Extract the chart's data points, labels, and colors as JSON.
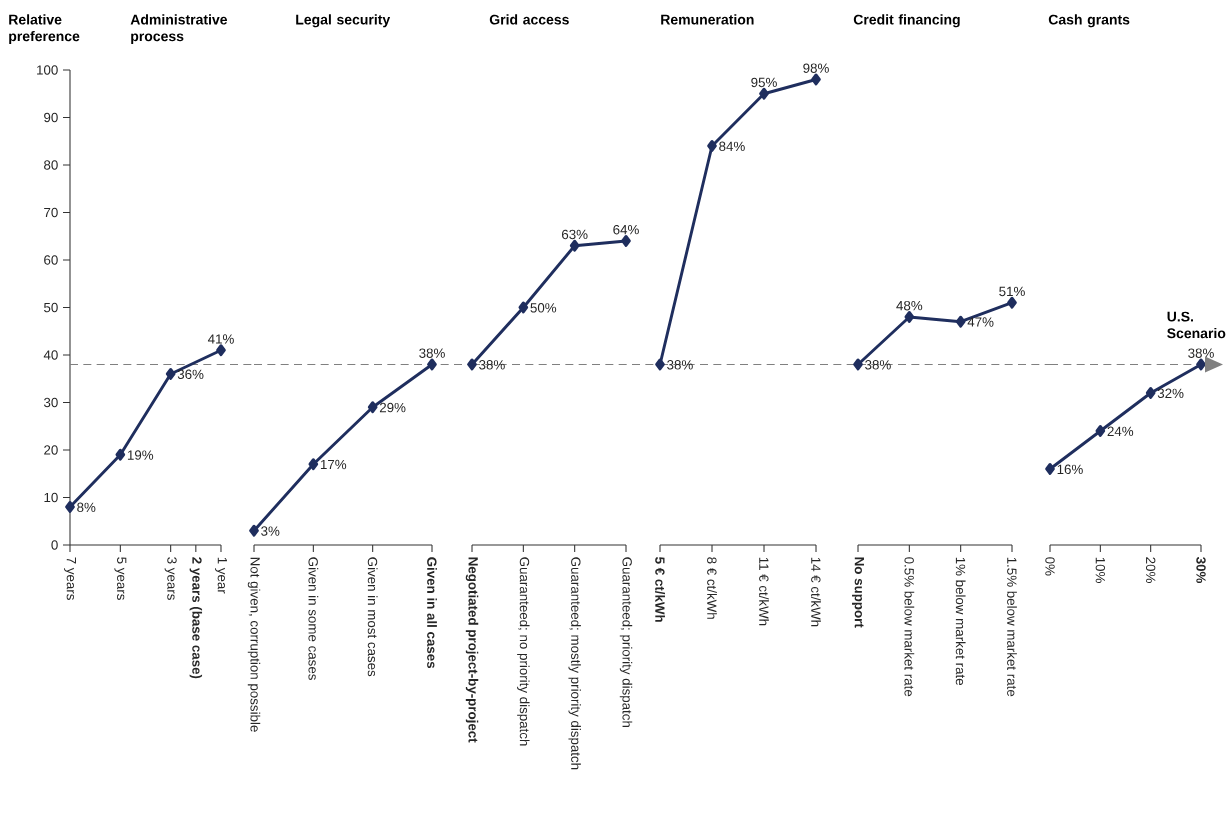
{
  "chart_data": [
    {
      "type": "line",
      "title": "Administrative process",
      "ylabel": "Relative preference",
      "x": [
        7,
        5,
        3,
        1
      ],
      "xlim": [
        7,
        1
      ],
      "xticks": [
        {
          "value": 7,
          "label": "7 years"
        },
        {
          "value": 5,
          "label": "5 years"
        },
        {
          "value": 3,
          "label": "3 years"
        },
        {
          "value": 2,
          "label": "**2 years (base case)**"
        },
        {
          "value": 1,
          "label": "1 year"
        }
      ],
      "values": [
        8,
        19,
        36,
        41
      ],
      "value_labels": [
        "8%",
        "19%",
        "36%",
        "41%"
      ],
      "color": "#1f2e5e",
      "marker": "diamond",
      "ylim": [
        0,
        100
      ],
      "yticks": [
        0,
        10,
        20,
        30,
        40,
        50,
        60,
        70,
        80,
        90,
        100
      ],
      "ref_lines": [
        {
          "axis": "y",
          "value": 38,
          "color": "#808080",
          "line_style": "dashed"
        }
      ]
    },
    {
      "type": "line",
      "title": "Legal security",
      "categories": [
        "Not given, corruption possible",
        "Given in some cases",
        "Given in most cases",
        "**Given in all cases**"
      ],
      "values": [
        3,
        17,
        29,
        38
      ],
      "value_labels": [
        "3%",
        "17%",
        "29%",
        "38%"
      ],
      "color": "#1f2e5e",
      "marker": "diamond",
      "ylim": [
        0,
        100
      ],
      "tick_labels": "x",
      "ref_lines": [
        {
          "axis": "y",
          "value": 38,
          "color": "#808080",
          "line_style": "dashed"
        }
      ]
    },
    {
      "type": "line",
      "title": "Grid access",
      "categories": [
        "**Negotiated project-by-project**",
        "Guaranteed; no priority dispatch",
        "Guaranteed; mostly priority dispatch",
        "Guaranteed; priority dispatch"
      ],
      "values": [
        38,
        50,
        63,
        64
      ],
      "value_labels": [
        "38%",
        "50%",
        "63%",
        "64%"
      ],
      "color": "#1f2e5e",
      "marker": "diamond",
      "ylim": [
        0,
        100
      ],
      "tick_labels": "x",
      "ref_lines": [
        {
          "axis": "y",
          "value": 38,
          "color": "#808080",
          "line_style": "dashed"
        }
      ]
    },
    {
      "type": "line",
      "title": "Remuneration",
      "categories": [
        "**5 € ct/kWh**",
        "8 € ct/kWh",
        "11 € ct/kWh",
        "14 € ct/kWh"
      ],
      "values": [
        38,
        84,
        95,
        98
      ],
      "value_labels": [
        "38%",
        "84%",
        "95%",
        "98%"
      ],
      "color": "#1f2e5e",
      "marker": "diamond",
      "ylim": [
        0,
        100
      ],
      "tick_labels": "x",
      "ref_lines": [
        {
          "axis": "y",
          "value": 38,
          "color": "#808080",
          "line_style": "dashed"
        }
      ]
    },
    {
      "type": "line",
      "title": "Credit financing",
      "categories": [
        "**No support**",
        "0.5% below market rate",
        "1% below market rate",
        "1.5% below market rate"
      ],
      "values": [
        38,
        48,
        47,
        51
      ],
      "value_labels": [
        "38%",
        "48%",
        "47%",
        "51%"
      ],
      "color": "#1f2e5e",
      "marker": "diamond",
      "ylim": [
        0,
        100
      ],
      "tick_labels": "x",
      "ref_lines": [
        {
          "axis": "y",
          "value": 38,
          "color": "#808080",
          "line_style": "dashed"
        }
      ]
    },
    {
      "type": "line",
      "title": "Cash grants",
      "categories": [
        "0%",
        "10%",
        "20%",
        "**30%**"
      ],
      "values": [
        16,
        24,
        32,
        38
      ],
      "value_labels": [
        "16%",
        "24%",
        "32%",
        "38%"
      ],
      "color": "#1f2e5e",
      "marker": "diamond",
      "ylim": [
        0,
        100
      ],
      "tick_labels": "x",
      "ref_lines": [
        {
          "axis": "y",
          "value": 38,
          "color": "#808080",
          "line_style": "dashed"
        }
      ],
      "annotations": [
        "U.S. Scenario"
      ]
    }
  ]
}
